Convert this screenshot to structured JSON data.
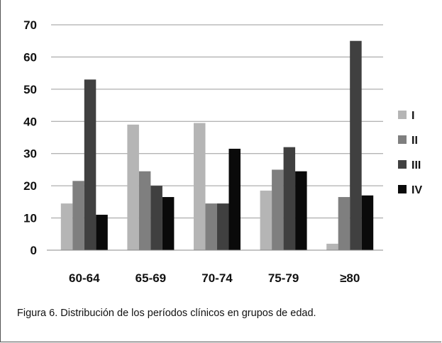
{
  "chart_data": {
    "type": "bar",
    "categories": [
      "60-64",
      "65-69",
      "70-74",
      "75-79",
      "≥80"
    ],
    "series": [
      {
        "name": "I",
        "color": "#b5b5b5",
        "values": [
          14.5,
          39,
          39.5,
          18.5,
          2
        ]
      },
      {
        "name": "II",
        "color": "#7f7f7f",
        "values": [
          21.5,
          24.5,
          14.5,
          25,
          16.5
        ]
      },
      {
        "name": "III",
        "color": "#404040",
        "values": [
          53,
          20,
          14.5,
          32,
          65
        ]
      },
      {
        "name": "IV",
        "color": "#0a0a0a",
        "values": [
          11,
          16.5,
          31.5,
          24.5,
          17
        ]
      }
    ],
    "ylim": [
      0,
      70
    ],
    "yticks": [
      0,
      10,
      20,
      30,
      40,
      50,
      60,
      70
    ],
    "grid": true,
    "legend_position": "right"
  },
  "caption": "Figura 6. Distribución de los períodos clínicos en grupos de edad."
}
